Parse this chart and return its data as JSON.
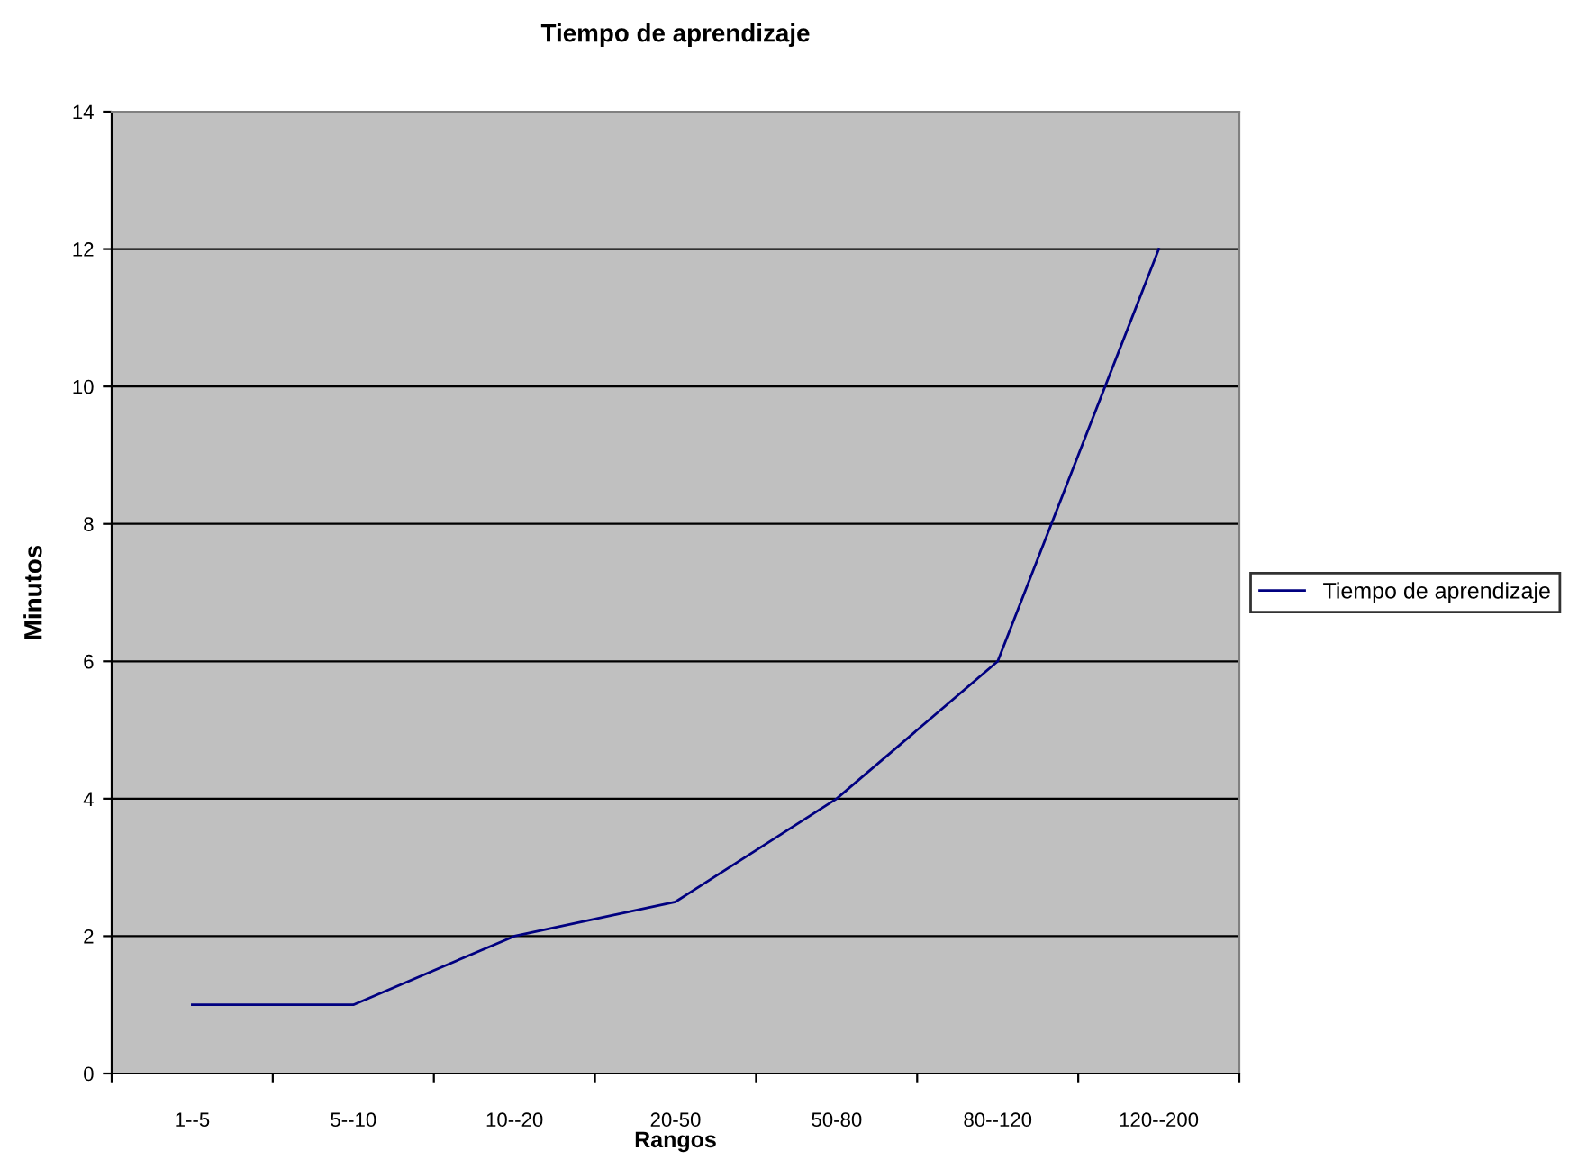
{
  "chart_data": {
    "type": "line",
    "title": "Tiempo de aprendizaje",
    "xlabel": "Rangos",
    "ylabel": "Minutos",
    "categories": [
      "1--5",
      "5--10",
      "10--20",
      "20-50",
      "50-80",
      "80--120",
      "120--200"
    ],
    "series": [
      {
        "name": "Tiempo de aprendizaje",
        "color": "#000080",
        "values": [
          1,
          1,
          2,
          2.5,
          4,
          6,
          12
        ]
      }
    ],
    "ylim": [
      0,
      14
    ],
    "yticks": [
      0,
      2,
      4,
      6,
      8,
      10,
      12,
      14
    ],
    "grid": "y",
    "legend": "right",
    "marker": "none",
    "line_style": "solid"
  }
}
